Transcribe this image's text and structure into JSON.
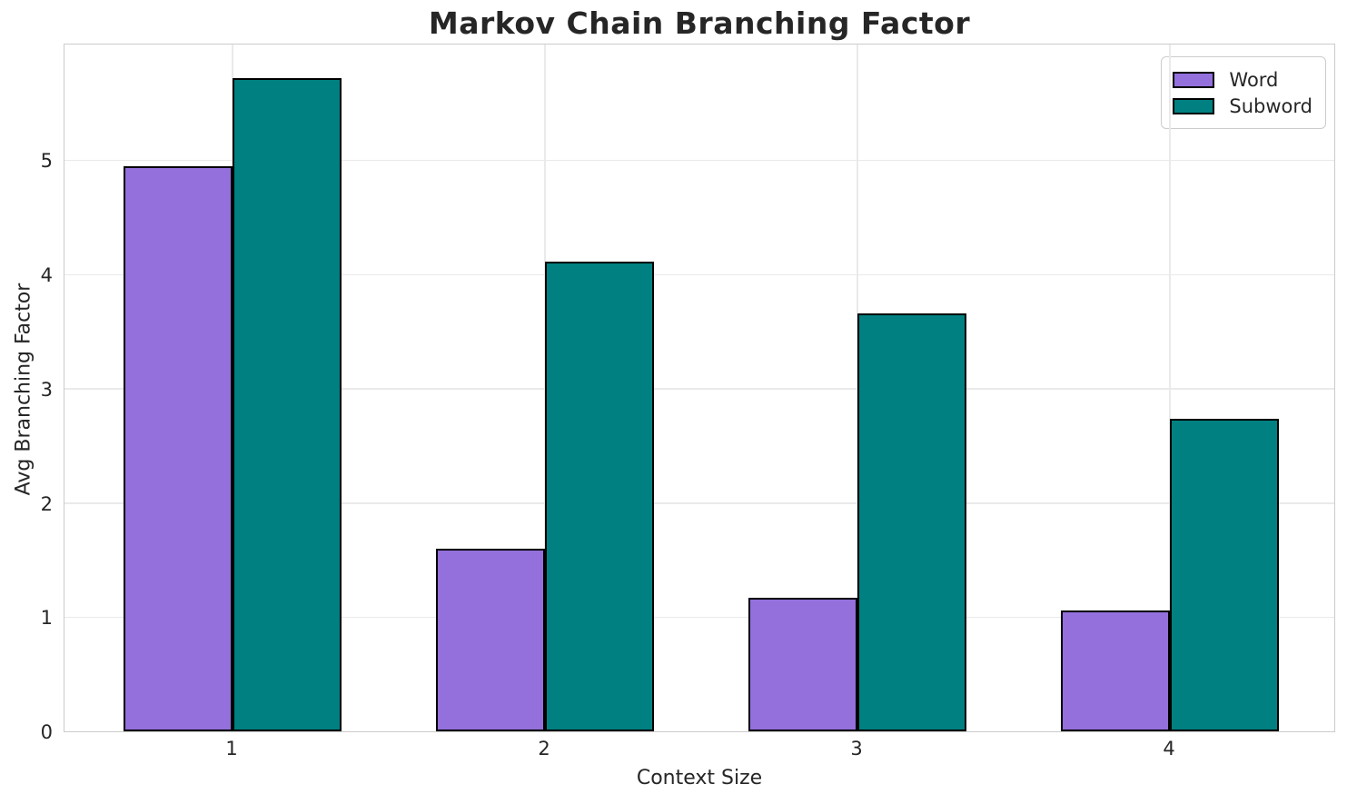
{
  "title": "Markov Chain Branching Factor",
  "chart_data": {
    "type": "bar",
    "title": "Markov Chain Branching Factor",
    "xlabel": "Context Size",
    "ylabel": "Avg Branching Factor",
    "categories": [
      "1",
      "2",
      "3",
      "4"
    ],
    "series": [
      {
        "name": "Word",
        "color": "#9370DB",
        "values": [
          4.95,
          1.6,
          1.17,
          1.06
        ]
      },
      {
        "name": "Subword",
        "color": "#008080",
        "values": [
          5.72,
          4.11,
          3.66,
          2.74
        ]
      }
    ],
    "ylim": [
      0,
      6.03
    ],
    "yticks": [
      "0",
      "1",
      "2",
      "3",
      "4",
      "5"
    ],
    "bar_edge_color": "#000000",
    "grid": "on",
    "legend_position": "upper right"
  },
  "style_colors": {
    "grid": "#eaeaea",
    "spine": "#cbcbcb",
    "text": "#262626"
  }
}
